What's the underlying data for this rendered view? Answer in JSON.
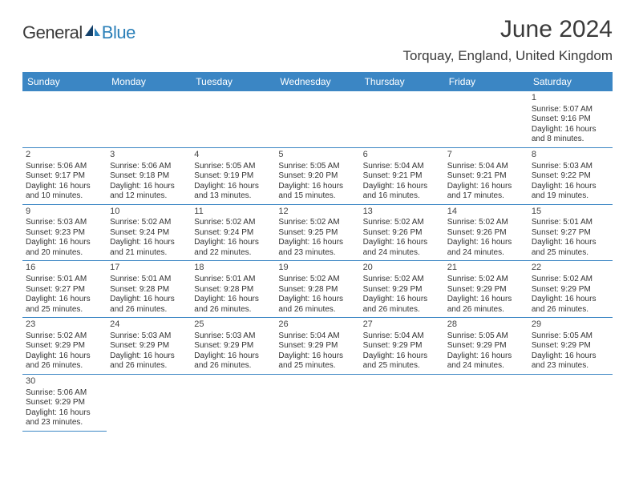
{
  "logo": {
    "general": "General",
    "blue": "Blue"
  },
  "title": "June 2024",
  "location": "Torquay, England, United Kingdom",
  "header_bg": "#3b86c4",
  "header_fg": "#ffffff",
  "rule_color": "#3b86c4",
  "logo_accent": "#2a7fb8",
  "text_color": "#333333",
  "dayHeaders": [
    "Sunday",
    "Monday",
    "Tuesday",
    "Wednesday",
    "Thursday",
    "Friday",
    "Saturday"
  ],
  "weeks": [
    [
      null,
      null,
      null,
      null,
      null,
      null,
      {
        "n": 1,
        "sr": "5:07 AM",
        "ss": "9:16 PM",
        "dl": "16 hours and 8 minutes."
      }
    ],
    [
      {
        "n": 2,
        "sr": "5:06 AM",
        "ss": "9:17 PM",
        "dl": "16 hours and 10 minutes."
      },
      {
        "n": 3,
        "sr": "5:06 AM",
        "ss": "9:18 PM",
        "dl": "16 hours and 12 minutes."
      },
      {
        "n": 4,
        "sr": "5:05 AM",
        "ss": "9:19 PM",
        "dl": "16 hours and 13 minutes."
      },
      {
        "n": 5,
        "sr": "5:05 AM",
        "ss": "9:20 PM",
        "dl": "16 hours and 15 minutes."
      },
      {
        "n": 6,
        "sr": "5:04 AM",
        "ss": "9:21 PM",
        "dl": "16 hours and 16 minutes."
      },
      {
        "n": 7,
        "sr": "5:04 AM",
        "ss": "9:21 PM",
        "dl": "16 hours and 17 minutes."
      },
      {
        "n": 8,
        "sr": "5:03 AM",
        "ss": "9:22 PM",
        "dl": "16 hours and 19 minutes."
      }
    ],
    [
      {
        "n": 9,
        "sr": "5:03 AM",
        "ss": "9:23 PM",
        "dl": "16 hours and 20 minutes."
      },
      {
        "n": 10,
        "sr": "5:02 AM",
        "ss": "9:24 PM",
        "dl": "16 hours and 21 minutes."
      },
      {
        "n": 11,
        "sr": "5:02 AM",
        "ss": "9:24 PM",
        "dl": "16 hours and 22 minutes."
      },
      {
        "n": 12,
        "sr": "5:02 AM",
        "ss": "9:25 PM",
        "dl": "16 hours and 23 minutes."
      },
      {
        "n": 13,
        "sr": "5:02 AM",
        "ss": "9:26 PM",
        "dl": "16 hours and 24 minutes."
      },
      {
        "n": 14,
        "sr": "5:02 AM",
        "ss": "9:26 PM",
        "dl": "16 hours and 24 minutes."
      },
      {
        "n": 15,
        "sr": "5:01 AM",
        "ss": "9:27 PM",
        "dl": "16 hours and 25 minutes."
      }
    ],
    [
      {
        "n": 16,
        "sr": "5:01 AM",
        "ss": "9:27 PM",
        "dl": "16 hours and 25 minutes."
      },
      {
        "n": 17,
        "sr": "5:01 AM",
        "ss": "9:28 PM",
        "dl": "16 hours and 26 minutes."
      },
      {
        "n": 18,
        "sr": "5:01 AM",
        "ss": "9:28 PM",
        "dl": "16 hours and 26 minutes."
      },
      {
        "n": 19,
        "sr": "5:02 AM",
        "ss": "9:28 PM",
        "dl": "16 hours and 26 minutes."
      },
      {
        "n": 20,
        "sr": "5:02 AM",
        "ss": "9:29 PM",
        "dl": "16 hours and 26 minutes."
      },
      {
        "n": 21,
        "sr": "5:02 AM",
        "ss": "9:29 PM",
        "dl": "16 hours and 26 minutes."
      },
      {
        "n": 22,
        "sr": "5:02 AM",
        "ss": "9:29 PM",
        "dl": "16 hours and 26 minutes."
      }
    ],
    [
      {
        "n": 23,
        "sr": "5:02 AM",
        "ss": "9:29 PM",
        "dl": "16 hours and 26 minutes."
      },
      {
        "n": 24,
        "sr": "5:03 AM",
        "ss": "9:29 PM",
        "dl": "16 hours and 26 minutes."
      },
      {
        "n": 25,
        "sr": "5:03 AM",
        "ss": "9:29 PM",
        "dl": "16 hours and 26 minutes."
      },
      {
        "n": 26,
        "sr": "5:04 AM",
        "ss": "9:29 PM",
        "dl": "16 hours and 25 minutes."
      },
      {
        "n": 27,
        "sr": "5:04 AM",
        "ss": "9:29 PM",
        "dl": "16 hours and 25 minutes."
      },
      {
        "n": 28,
        "sr": "5:05 AM",
        "ss": "9:29 PM",
        "dl": "16 hours and 24 minutes."
      },
      {
        "n": 29,
        "sr": "5:05 AM",
        "ss": "9:29 PM",
        "dl": "16 hours and 23 minutes."
      }
    ],
    [
      {
        "n": 30,
        "sr": "5:06 AM",
        "ss": "9:29 PM",
        "dl": "16 hours and 23 minutes."
      },
      null,
      null,
      null,
      null,
      null,
      null
    ]
  ],
  "labels": {
    "sunrise": "Sunrise:",
    "sunset": "Sunset:",
    "daylight": "Daylight:"
  }
}
